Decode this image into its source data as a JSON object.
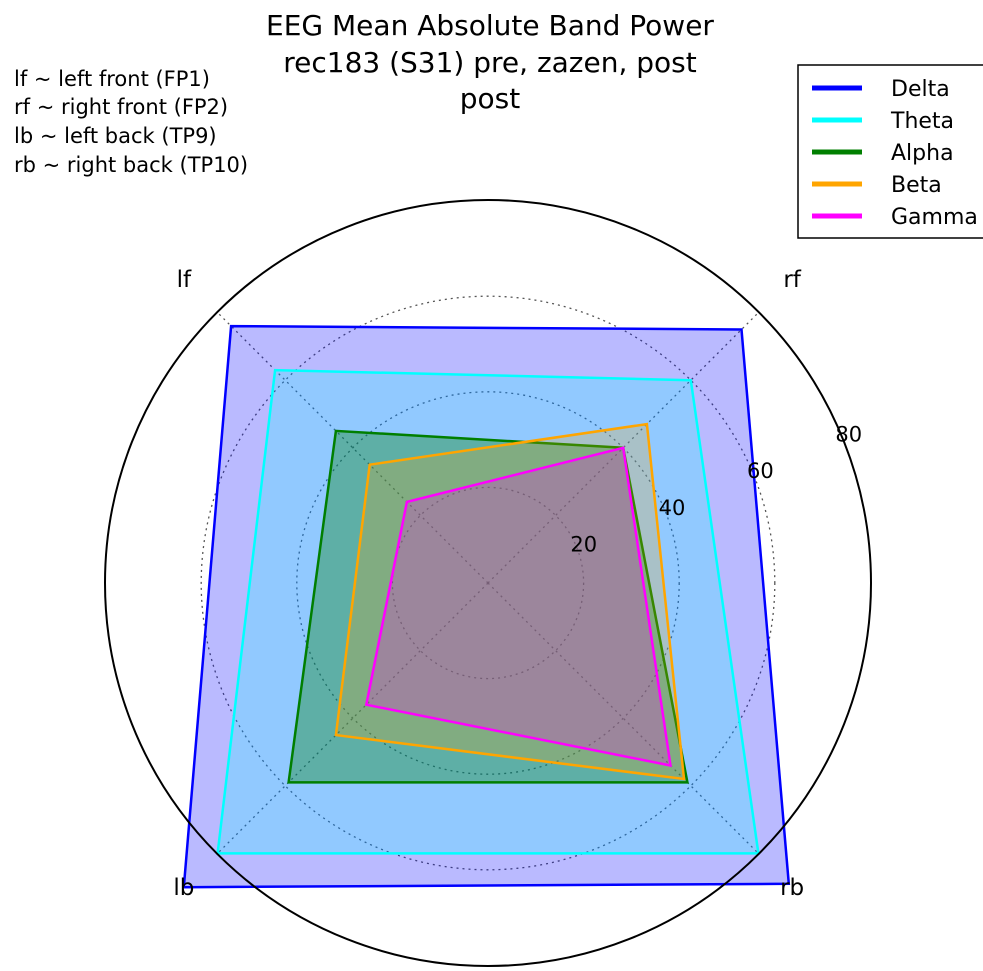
{
  "chart_data": {
    "type": "radar",
    "title_lines": [
      "EEG Mean Absolute Band Power",
      "rec183 (S31) pre, zazen, post",
      "post"
    ],
    "notes": [
      "lf ~ left front (FP1)",
      "rf ~ right front (FP2)",
      "lb ~ left back (TP9)",
      "rb ~ right back (TP10)"
    ],
    "axes": [
      "rf",
      "lf",
      "lb",
      "rb"
    ],
    "axis_angles_deg": [
      45,
      135,
      225,
      315
    ],
    "rlim": [
      0,
      80
    ],
    "radial_ticks": [
      20,
      40,
      60,
      80
    ],
    "grid": true,
    "legend_position": "top-right",
    "series": [
      {
        "name": "Delta",
        "color": "#0000ff",
        "fill_opacity": 0.27,
        "values": [
          75,
          76,
          90,
          89
        ]
      },
      {
        "name": "Theta",
        "color": "#00ffff",
        "fill_opacity": 0.22,
        "values": [
          60,
          63,
          80,
          80
        ]
      },
      {
        "name": "Alpha",
        "color": "#007f00",
        "fill_opacity": 0.35,
        "values": [
          40,
          45,
          59,
          59
        ]
      },
      {
        "name": "Beta",
        "color": "#ffa500",
        "fill_opacity": 0.22,
        "values": [
          47,
          35,
          45,
          58
        ]
      },
      {
        "name": "Gamma",
        "color": "#ff00ff",
        "fill_opacity": 0.22,
        "values": [
          40,
          24,
          36,
          54
        ]
      }
    ]
  }
}
